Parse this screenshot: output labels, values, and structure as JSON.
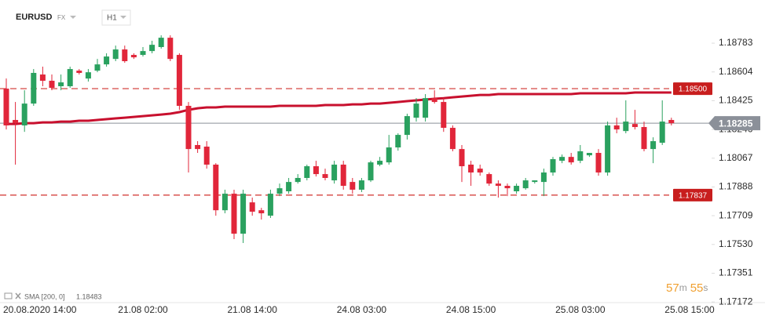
{
  "chart_data": {
    "type": "candlestick",
    "symbol": "EURUSD",
    "market": "FX",
    "interval": "H1",
    "categories": [
      null,
      null,
      null,
      "20.08.2020 14:00",
      null,
      null,
      null,
      null,
      null,
      null,
      null,
      null,
      null,
      null,
      null,
      "21.08 02:00",
      null,
      null,
      null,
      null,
      null,
      null,
      null,
      null,
      null,
      null,
      null,
      "21.08 14:00",
      null,
      null,
      null,
      null,
      null,
      null,
      null,
      null,
      null,
      null,
      null,
      "24.08 03:00",
      null,
      null,
      null,
      null,
      null,
      null,
      null,
      null,
      null,
      null,
      null,
      "24.08 15:00",
      null,
      null,
      null,
      null,
      null,
      null,
      null,
      null,
      null,
      null,
      null,
      "25.08 03:00",
      null,
      null,
      null,
      null,
      null,
      null,
      null,
      null,
      null,
      null,
      null,
      "25.08 15:00"
    ],
    "open": [
      1.185,
      1.18305,
      1.18271,
      1.18407,
      1.18588,
      1.18549,
      1.18515,
      1.18515,
      1.18612,
      1.18563,
      1.18612,
      1.18651,
      1.18685,
      1.18744,
      1.1871,
      1.1871,
      1.18734,
      1.18759,
      1.18817,
      1.1871,
      1.18393,
      1.18149,
      1.18139,
      1.18027,
      1.17743,
      1.17846,
      1.17597,
      1.17792,
      1.17743,
      1.17709,
      1.17846,
      1.17861,
      1.17919,
      1.17944,
      1.18017,
      1.17968,
      1.17929,
      1.18027,
      1.17919,
      1.17871,
      1.17929,
      1.18027,
      1.18041,
      1.18134,
      1.18212,
      1.18319,
      1.18319,
      1.18441,
      1.18417,
      1.18256,
      1.18124,
      1.18027,
      1.18002,
      1.17968,
      1.17909,
      1.17895,
      1.17861,
      1.1788,
      1.17919,
      1.17919,
      1.17978,
      1.18051,
      1.18075,
      1.18051,
      1.18085,
      1.181,
      1.17978,
      1.18271,
      1.18236,
      1.1828,
      1.18261,
      1.18124,
      1.18163,
      1.18305,
      null,
      null
    ],
    "high": [
      1.18563,
      1.18417,
      1.1849,
      1.18622,
      1.18637,
      1.18588,
      1.18588,
      1.18637,
      1.18622,
      1.18622,
      1.18685,
      1.1872,
      1.18768,
      1.18768,
      1.1872,
      1.18759,
      1.18798,
      1.18832,
      1.18832,
      1.1872,
      1.18417,
      1.18173,
      1.18173,
      1.18036,
      1.17871,
      1.17871,
      1.17871,
      1.17822,
      1.17758,
      1.17871,
      1.17909,
      1.17944,
      1.17968,
      1.18027,
      1.18051,
      1.18002,
      1.18051,
      1.18051,
      1.17944,
      1.17944,
      1.18051,
      1.18075,
      1.18212,
      1.18222,
      1.18344,
      1.18441,
      1.18466,
      1.1849,
      1.18441,
      1.18271,
      1.18149,
      1.18051,
      1.18027,
      1.17978,
      1.17929,
      1.17909,
      1.17909,
      1.17944,
      1.17929,
      1.18002,
      1.18075,
      1.1809,
      1.181,
      1.18149,
      1.181,
      1.18124,
      1.18295,
      1.18319,
      1.18427,
      1.18368,
      1.18295,
      1.18197,
      1.18427,
      1.18319,
      null,
      null
    ],
    "low": [
      1.18246,
      1.18027,
      1.18231,
      1.18393,
      1.18515,
      1.1849,
      1.1849,
      1.18505,
      1.18588,
      1.18544,
      1.18602,
      1.18637,
      1.18671,
      1.18661,
      1.18685,
      1.187,
      1.1872,
      1.18749,
      1.18671,
      1.18368,
      1.17978,
      1.181,
      1.18002,
      1.17709,
      1.17724,
      1.17563,
      1.17539,
      1.17709,
      1.17685,
      1.17695,
      1.17831,
      1.17846,
      1.17909,
      1.17929,
      1.17953,
      1.17929,
      1.17909,
      1.17871,
      1.17846,
      1.17856,
      1.17919,
      1.18017,
      1.18027,
      1.18114,
      1.18183,
      1.18295,
      1.18295,
      1.18407,
      1.18231,
      1.1811,
      1.17919,
      1.17895,
      1.17958,
      1.17895,
      1.17822,
      1.17831,
      1.17846,
      1.17871,
      1.17909,
      1.17831,
      1.17958,
      1.18036,
      1.18027,
      1.18036,
      1.18075,
      1.17958,
      1.17958,
      1.18222,
      1.18222,
      1.18246,
      1.1811,
      1.18036,
      1.18149,
      1.18271,
      null,
      null
    ],
    "close": [
      1.18271,
      1.18285,
      1.18407,
      1.18598,
      1.18549,
      1.18505,
      1.18539,
      1.18622,
      1.18598,
      1.18602,
      1.18651,
      1.187,
      1.18744,
      1.18671,
      1.18695,
      1.18734,
      1.18773,
      1.18817,
      1.18685,
      1.18393,
      1.18124,
      1.18124,
      1.18027,
      1.17743,
      1.17846,
      1.17597,
      1.17846,
      1.17734,
      1.17724,
      1.17846,
      1.1788,
      1.17919,
      1.17944,
      1.18017,
      1.17968,
      1.17944,
      1.18027,
      1.17895,
      1.17871,
      1.17929,
      1.18041,
      1.18051,
      1.18134,
      1.18212,
      1.18329,
      1.18407,
      1.18441,
      1.18417,
      1.18256,
      1.18124,
      1.18017,
      1.17978,
      1.17978,
      1.17909,
      1.17895,
      1.1788,
      1.17895,
      1.17929,
      1.17929,
      1.17978,
      1.18061,
      1.18075,
      1.18041,
      1.1811,
      1.181,
      1.17978,
      1.18271,
      1.18246,
      1.18295,
      1.18261,
      1.18124,
      1.18173,
      1.18295,
      1.18285,
      null,
      null
    ],
    "up_color": "#2aa15f",
    "down_color": "#e1263a",
    "sma": {
      "label": "SMA [200, 0]",
      "last": 1.18483,
      "color": "#c8102e",
      "values": [
        1.1828,
        1.1828,
        1.18285,
        1.18285,
        1.1829,
        1.1829,
        1.18295,
        1.18295,
        1.183,
        1.183,
        1.18305,
        1.1831,
        1.18315,
        1.18319,
        1.18324,
        1.18329,
        1.18334,
        1.18339,
        1.18344,
        1.18354,
        1.18368,
        1.18378,
        1.18383,
        1.18383,
        1.18388,
        1.18388,
        1.18388,
        1.18388,
        1.18388,
        1.18388,
        1.18393,
        1.18393,
        1.18393,
        1.18393,
        1.18393,
        1.18398,
        1.18398,
        1.18398,
        1.18402,
        1.18402,
        1.18407,
        1.18407,
        1.18412,
        1.18417,
        1.18422,
        1.18427,
        1.18432,
        1.18437,
        1.18441,
        1.18446,
        1.18451,
        1.18456,
        1.18461,
        1.18461,
        1.18466,
        1.18466,
        1.18466,
        1.18466,
        1.18466,
        1.18466,
        1.18466,
        1.18466,
        1.18466,
        1.18471,
        1.18471,
        1.18471,
        1.18471,
        1.18471,
        1.18471,
        1.18476,
        1.18476,
        1.18476,
        1.18476,
        1.18476,
        null,
        null
      ]
    },
    "levels": [
      {
        "value": 1.185,
        "label": "1.18500"
      },
      1.17837
    ],
    "level_color": "#d0312d",
    "current_price": 1.18285,
    "current_color": "#8b9099",
    "ylim": [
      1.17124,
      1.19003
    ],
    "yticks": [
      1.18783,
      1.18604,
      1.18425,
      1.18246,
      1.18067,
      1.17888,
      1.17709,
      {
        "value": 1.1753,
        "label": "1.17530"
      },
      1.17351,
      1.17172
    ],
    "timer": [
      "57",
      "m",
      "55",
      "s"
    ]
  }
}
